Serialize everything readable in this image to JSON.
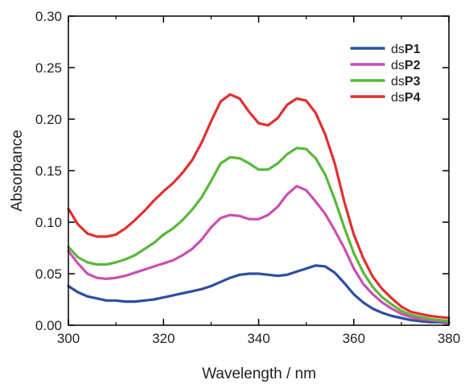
{
  "chart_data": {
    "type": "line",
    "title": "",
    "xlabel": "Wavelength / nm",
    "ylabel": "Absorbance",
    "xlim": [
      300,
      380
    ],
    "ylim": [
      0,
      0.3
    ],
    "x_ticks": [
      300,
      320,
      340,
      360,
      380
    ],
    "y_ticks": [
      "0.00",
      "0.05",
      "0.10",
      "0.15",
      "0.20",
      "0.25",
      "0.30"
    ],
    "grid": false,
    "legend_position": "top-right",
    "x": [
      300,
      302,
      304,
      306,
      308,
      310,
      312,
      314,
      316,
      318,
      320,
      322,
      324,
      326,
      328,
      330,
      332,
      334,
      336,
      338,
      340,
      342,
      344,
      346,
      348,
      350,
      352,
      354,
      356,
      358,
      360,
      362,
      364,
      366,
      368,
      370,
      372,
      374,
      376,
      378,
      380
    ],
    "series": [
      {
        "name_prefix": "ds",
        "name_bold": "P1",
        "color": "#2e4fa0",
        "values": [
          0.038,
          0.032,
          0.028,
          0.026,
          0.024,
          0.024,
          0.023,
          0.023,
          0.024,
          0.025,
          0.027,
          0.029,
          0.031,
          0.033,
          0.035,
          0.038,
          0.042,
          0.046,
          0.049,
          0.05,
          0.05,
          0.049,
          0.048,
          0.049,
          0.052,
          0.055,
          0.058,
          0.057,
          0.051,
          0.041,
          0.03,
          0.022,
          0.016,
          0.012,
          0.009,
          0.007,
          0.005,
          0.004,
          0.003,
          0.003,
          0.002
        ]
      },
      {
        "name_prefix": "ds",
        "name_bold": "P2",
        "color": "#cc4fb0",
        "values": [
          0.072,
          0.06,
          0.05,
          0.046,
          0.045,
          0.046,
          0.048,
          0.051,
          0.054,
          0.057,
          0.06,
          0.063,
          0.068,
          0.074,
          0.083,
          0.095,
          0.104,
          0.107,
          0.106,
          0.103,
          0.103,
          0.107,
          0.115,
          0.127,
          0.135,
          0.131,
          0.12,
          0.108,
          0.092,
          0.075,
          0.055,
          0.04,
          0.03,
          0.022,
          0.016,
          0.011,
          0.008,
          0.006,
          0.005,
          0.004,
          0.003
        ]
      },
      {
        "name_prefix": "ds",
        "name_bold": "P3",
        "color": "#58b83a",
        "values": [
          0.076,
          0.066,
          0.061,
          0.059,
          0.059,
          0.061,
          0.064,
          0.068,
          0.074,
          0.08,
          0.088,
          0.094,
          0.102,
          0.112,
          0.124,
          0.14,
          0.157,
          0.163,
          0.162,
          0.157,
          0.151,
          0.151,
          0.157,
          0.166,
          0.172,
          0.171,
          0.162,
          0.146,
          0.122,
          0.095,
          0.07,
          0.051,
          0.037,
          0.027,
          0.02,
          0.014,
          0.01,
          0.008,
          0.006,
          0.005,
          0.004
        ]
      },
      {
        "name_prefix": "ds",
        "name_bold": "P4",
        "color": "#e03030",
        "values": [
          0.113,
          0.098,
          0.089,
          0.086,
          0.086,
          0.088,
          0.094,
          0.102,
          0.111,
          0.121,
          0.13,
          0.138,
          0.148,
          0.16,
          0.177,
          0.198,
          0.217,
          0.224,
          0.22,
          0.207,
          0.196,
          0.194,
          0.201,
          0.214,
          0.22,
          0.218,
          0.206,
          0.185,
          0.157,
          0.12,
          0.088,
          0.065,
          0.047,
          0.035,
          0.026,
          0.018,
          0.013,
          0.011,
          0.009,
          0.008,
          0.007
        ]
      }
    ]
  }
}
